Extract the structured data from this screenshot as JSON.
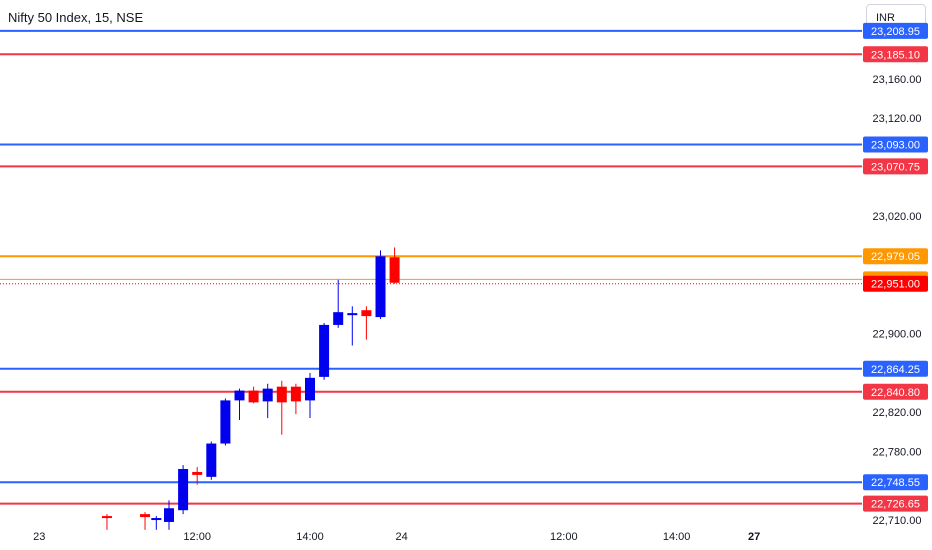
{
  "header": {
    "title": "Nifty 50 Index, 15, NSE",
    "currency": "INR"
  },
  "colors": {
    "blue_line": "#2962ff",
    "red_line": "#f23645",
    "orange_line": "#ff9800",
    "bull": "#0000ee",
    "bear": "#ff0000",
    "axis_text": "#131722"
  },
  "chart_data": {
    "type": "candlestick",
    "ylim": [
      22710,
      23218
    ],
    "price_ticks": [
      23160.0,
      23120.0,
      23020.0,
      22900.0,
      22820.0,
      22780.0,
      22710.0
    ],
    "price_tick_labels": [
      "23,160.00",
      "23,120.00",
      "23,020.00",
      "22,900.00",
      "22,820.00",
      "22,780.00",
      "22,710.00"
    ],
    "time_ticks": [
      {
        "label": "23",
        "bar": -9.2,
        "bold": false
      },
      {
        "label": "12:00",
        "bar": 2,
        "bold": false
      },
      {
        "label": "14:00",
        "bar": 10,
        "bold": false
      },
      {
        "label": "24",
        "bar": 16.5,
        "bold": false
      },
      {
        "label": "12:00",
        "bar": 28,
        "bold": false
      },
      {
        "label": "14:00",
        "bar": 36,
        "bold": false
      },
      {
        "label": "27",
        "bar": 41.5,
        "bold": true
      }
    ],
    "levels": [
      {
        "value": 23208.95,
        "label": "23,208.95",
        "kind": "blue"
      },
      {
        "value": 23185.1,
        "label": "23,185.10",
        "kind": "red"
      },
      {
        "value": 23093.0,
        "label": "23,093.00",
        "kind": "blue"
      },
      {
        "value": 23070.75,
        "label": "23,070.75",
        "kind": "red"
      },
      {
        "value": 22979.05,
        "label": "22,979.05",
        "kind": "orange"
      },
      {
        "value": 22955.45,
        "label": "22,955.45",
        "kind": "orange_text"
      },
      {
        "value": 22951.0,
        "label": "22,951.00",
        "kind": "current"
      },
      {
        "value": 22864.25,
        "label": "22,864.25",
        "kind": "blue"
      },
      {
        "value": 22840.8,
        "label": "22,840.80",
        "kind": "red"
      },
      {
        "value": 22748.55,
        "label": "22,748.55",
        "kind": "blue"
      },
      {
        "value": 22726.65,
        "label": "22,726.65",
        "kind": "red"
      }
    ],
    "candles": [
      {
        "bar": -4.4,
        "o": 22714,
        "h": 22716,
        "l": 22700,
        "c": 22712
      },
      {
        "bar": -1.7,
        "o": 22716,
        "h": 22718,
        "l": 22700,
        "c": 22713
      },
      {
        "bar": -0.9,
        "o": 22711,
        "h": 22714,
        "l": 22700,
        "c": 22712
      },
      {
        "bar": 0,
        "o": 22708,
        "h": 22730,
        "l": 22700,
        "c": 22722
      },
      {
        "bar": 1,
        "o": 22720,
        "h": 22766,
        "l": 22716,
        "c": 22762
      },
      {
        "bar": 2,
        "o": 22759,
        "h": 22764,
        "l": 22746,
        "c": 22756
      },
      {
        "bar": 3,
        "o": 22754,
        "h": 22790,
        "l": 22751,
        "c": 22788
      },
      {
        "bar": 4,
        "o": 22788,
        "h": 22834,
        "l": 22786,
        "c": 22832
      },
      {
        "bar": 5,
        "o": 22832,
        "h": 22844,
        "l": 22812,
        "c": 22842
      },
      {
        "bar": 6,
        "o": 22842,
        "h": 22846,
        "l": 22829,
        "c": 22830
      },
      {
        "bar": 7,
        "o": 22831,
        "h": 22849,
        "l": 22814,
        "c": 22844
      },
      {
        "bar": 8,
        "o": 22846,
        "h": 22852,
        "l": 22797,
        "c": 22830
      },
      {
        "bar": 9,
        "o": 22846,
        "h": 22849,
        "l": 22818,
        "c": 22831
      },
      {
        "bar": 10,
        "o": 22832,
        "h": 22860,
        "l": 22814,
        "c": 22855
      },
      {
        "bar": 11,
        "o": 22856,
        "h": 22911,
        "l": 22853,
        "c": 22909
      },
      {
        "bar": 12,
        "o": 22909,
        "h": 22955,
        "l": 22906,
        "c": 22922
      },
      {
        "bar": 13,
        "o": 22920,
        "h": 22928,
        "l": 22888,
        "c": 22921
      },
      {
        "bar": 14,
        "o": 22924,
        "h": 22928,
        "l": 22894,
        "c": 22918
      },
      {
        "bar": 15,
        "o": 22917,
        "h": 22985,
        "l": 22915,
        "c": 22979
      },
      {
        "bar": 16,
        "o": 22978,
        "h": 22988,
        "l": 22951,
        "c": 22952
      }
    ]
  }
}
